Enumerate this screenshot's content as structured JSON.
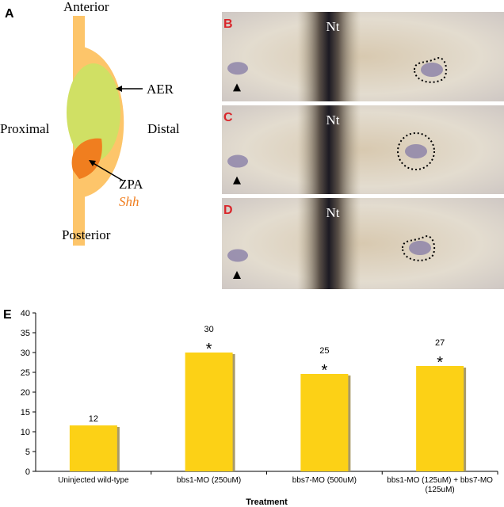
{
  "panel_a": {
    "label": "A",
    "anterior": "Anterior",
    "posterior": "Posterior",
    "proximal": "Proximal",
    "distal": "Distal",
    "aer": "AER",
    "zpa": "ZPA",
    "gene": "Shh"
  },
  "micrographs": [
    {
      "label": "B",
      "region": "Nt"
    },
    {
      "label": "C",
      "region": "Nt"
    },
    {
      "label": "D",
      "region": "Nt"
    }
  ],
  "chart_data": {
    "type": "bar",
    "panel_label": "E",
    "x_label": "Treatment",
    "categories": [
      "Uninjected wild-type",
      "bbs1-MO (250uM)",
      "bbs7-MO (500uM)",
      "bbs1-MO (125uM) + bbs7-MO (125uM)"
    ],
    "values": [
      11.6,
      30,
      24.6,
      26.6
    ],
    "value_labels": [
      "12",
      "30",
      "25",
      "27"
    ],
    "significance": [
      null,
      "*",
      "*",
      "*"
    ],
    "color": "#fcd116",
    "ylim": [
      0,
      40
    ],
    "yticks": [
      0,
      5,
      10,
      15,
      20,
      25,
      30,
      35,
      40
    ]
  }
}
